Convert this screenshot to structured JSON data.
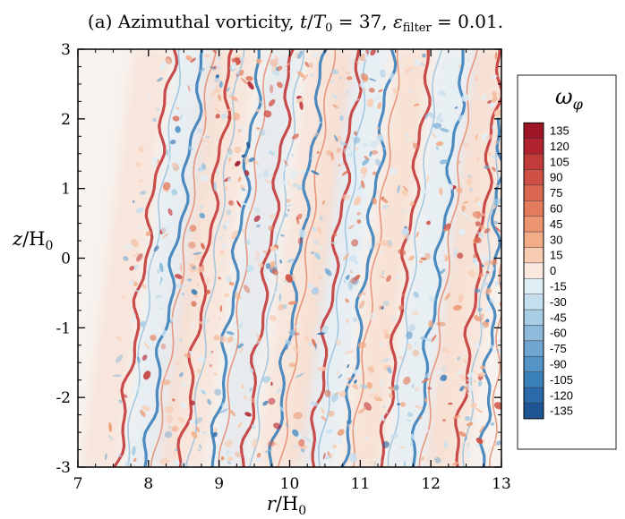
{
  "chart_data": {
    "type": "heatmap",
    "title": "(a) Azimuthal vorticity, t/T₀ = 37, εfilter = 0.01.",
    "title_parts": {
      "prefix": "(a) Azimuthal vorticity, ",
      "t": "t",
      "slash_T": "/",
      "T": "T",
      "T_sub": "0",
      "eq37": " = 37, ",
      "eps": "ε",
      "eps_sub": "filter",
      "eq001": " = 0.01."
    },
    "xlabel": "r/H₀",
    "xlabel_parts": {
      "var": "r",
      "slash": "/H",
      "sub": "0"
    },
    "ylabel": "z/H₀",
    "ylabel_parts": {
      "var": "z",
      "slash": "/H",
      "sub": "0"
    },
    "xlim": [
      7,
      13
    ],
    "ylim": [
      -3,
      3
    ],
    "x_ticks": [
      7,
      8,
      9,
      10,
      11,
      12,
      13
    ],
    "x_tick_labels": [
      "7",
      "8",
      "9",
      "10",
      "11",
      "12",
      "13"
    ],
    "y_ticks": [
      -3,
      -2,
      -1,
      0,
      1,
      2,
      3
    ],
    "y_tick_labels": [
      "-3",
      "-2",
      "-1",
      "0",
      "1",
      "2",
      "3"
    ],
    "colorbar": {
      "title": "ωφ",
      "title_parts": {
        "var": "ω",
        "sub": "φ"
      },
      "levels": [
        135,
        120,
        105,
        90,
        75,
        60,
        45,
        30,
        15,
        0,
        -15,
        -30,
        -45,
        -60,
        -75,
        -90,
        -105,
        -120,
        -135
      ],
      "level_labels": [
        "135",
        "120",
        "105",
        "90",
        "75",
        "60",
        "45",
        "30",
        "15",
        "0",
        "-15",
        "-30",
        "-45",
        "-60",
        "-75",
        "-90",
        "-105",
        "-120",
        "-135"
      ],
      "level_colors": [
        "#9e1528",
        "#b2222f",
        "#c33a3a",
        "#cf5044",
        "#d9664f",
        "#e27c5d",
        "#eb946f",
        "#f2ad88",
        "#f8ccb3",
        "#fbe9e0",
        "#e0eef6",
        "#c6dfee",
        "#a9cde4",
        "#8dbbdb",
        "#6fa6d1",
        "#5393c6",
        "#3b7fba",
        "#2a6aa9",
        "#1e5695"
      ]
    },
    "streaks": [
      {
        "sign": 1,
        "z_bottom": -3.0,
        "r_bottom": 7.55,
        "z_top": 3.0,
        "r_top": 8.35
      },
      {
        "sign": -1,
        "z_bottom": -3.0,
        "r_bottom": 7.95,
        "z_top": 3.0,
        "r_top": 8.8
      },
      {
        "sign": 1,
        "z_bottom": -3.0,
        "r_bottom": 8.45,
        "z_top": 3.0,
        "r_top": 9.2
      },
      {
        "sign": -1,
        "z_bottom": -3.0,
        "r_bottom": 8.9,
        "z_top": 3.0,
        "r_top": 9.6
      },
      {
        "sign": 1,
        "z_bottom": -3.0,
        "r_bottom": 9.35,
        "z_top": 3.0,
        "r_top": 10.05
      },
      {
        "sign": -1,
        "z_bottom": -3.0,
        "r_bottom": 9.75,
        "z_top": 3.0,
        "r_top": 10.5
      },
      {
        "sign": 1,
        "z_bottom": -3.0,
        "r_bottom": 10.3,
        "z_top": 3.0,
        "r_top": 11.0
      },
      {
        "sign": -1,
        "z_bottom": -3.0,
        "r_bottom": 10.75,
        "z_top": 3.0,
        "r_top": 11.45
      },
      {
        "sign": 1,
        "z_bottom": -3.0,
        "r_bottom": 11.3,
        "z_top": 3.0,
        "r_top": 12.0
      },
      {
        "sign": -1,
        "z_bottom": -3.0,
        "r_bottom": 11.75,
        "z_top": 3.0,
        "r_top": 12.5
      },
      {
        "sign": 1,
        "z_bottom": -3.0,
        "r_bottom": 12.35,
        "z_top": 3.0,
        "r_top": 13.0
      },
      {
        "sign": -1,
        "z_bottom": -3.0,
        "r_bottom": 12.75,
        "z_top": 2.0,
        "r_top": 13.0
      }
    ],
    "band_background": [
      {
        "sign": 1,
        "r_bottom": 8.1,
        "r_top": 8.9,
        "width_r": 0.35
      },
      {
        "sign": 1,
        "r_bottom": 9.2,
        "r_top": 9.9,
        "width_r": 0.35
      },
      {
        "sign": 1,
        "r_bottom": 10.1,
        "r_top": 10.8,
        "width_r": 0.35
      },
      {
        "sign": 1,
        "r_bottom": 11.1,
        "r_top": 11.8,
        "width_r": 0.35
      },
      {
        "sign": 1,
        "r_bottom": 12.1,
        "r_top": 12.8,
        "width_r": 0.35
      }
    ]
  }
}
